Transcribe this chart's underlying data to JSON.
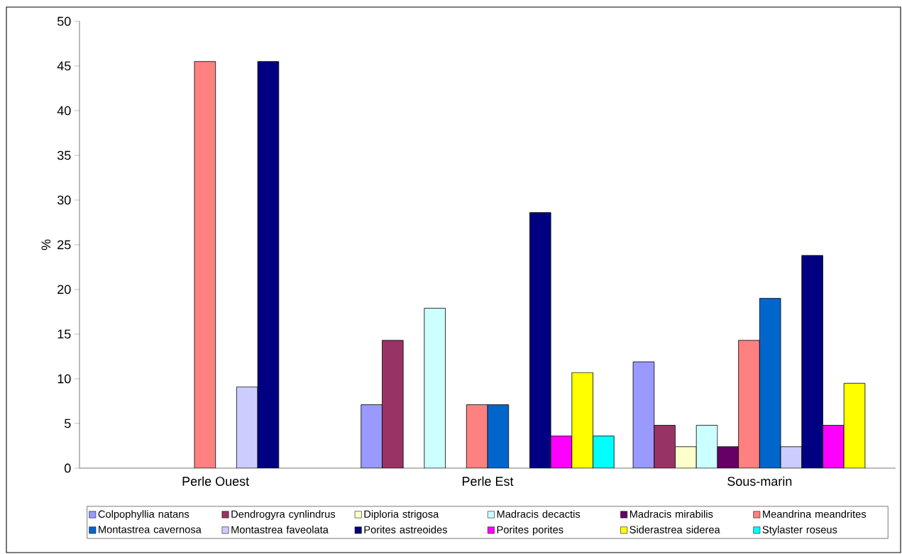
{
  "chart_data": {
    "type": "bar",
    "ylabel": "%",
    "categories": [
      "Perle Ouest",
      "Perle Est",
      "Sous-marin"
    ],
    "series": [
      {
        "name": "Colpophyllia natans",
        "color": "#9999ff",
        "values": [
          null,
          7.1,
          11.9
        ]
      },
      {
        "name": "Dendrogyra cynlindrus",
        "color": "#993366",
        "values": [
          null,
          14.3,
          4.8
        ]
      },
      {
        "name": "Diploria strigosa",
        "color": "#ffffcc",
        "values": [
          null,
          null,
          2.4
        ]
      },
      {
        "name": "Madracis decactis",
        "color": "#ccffff",
        "values": [
          null,
          17.9,
          4.8
        ]
      },
      {
        "name": "Madracis mirabilis",
        "color": "#660066",
        "values": [
          null,
          null,
          2.4
        ]
      },
      {
        "name": "Meandrina meandrites",
        "color": "#ff8080",
        "values": [
          45.5,
          7.1,
          14.3
        ]
      },
      {
        "name": "Montastrea cavernosa",
        "color": "#0066cc",
        "values": [
          null,
          7.1,
          19.0
        ]
      },
      {
        "name": "Montastrea faveolata",
        "color": "#ccccff",
        "values": [
          9.1,
          null,
          2.4
        ]
      },
      {
        "name": "Porites astreoides",
        "color": "#000080",
        "values": [
          45.5,
          28.6,
          23.8
        ]
      },
      {
        "name": "Porites porites",
        "color": "#ff00ff",
        "values": [
          null,
          3.6,
          4.8
        ]
      },
      {
        "name": "Siderastrea siderea",
        "color": "#ffff00",
        "values": [
          null,
          10.7,
          9.5
        ]
      },
      {
        "name": "Stylaster roseus",
        "color": "#00ffff",
        "values": [
          null,
          3.6,
          null
        ]
      }
    ],
    "ylim": [
      0,
      50
    ],
    "yticks": [
      0,
      5,
      10,
      15,
      20,
      25,
      30,
      35,
      40,
      45,
      50
    ],
    "grid": false,
    "legend": "bottom"
  }
}
